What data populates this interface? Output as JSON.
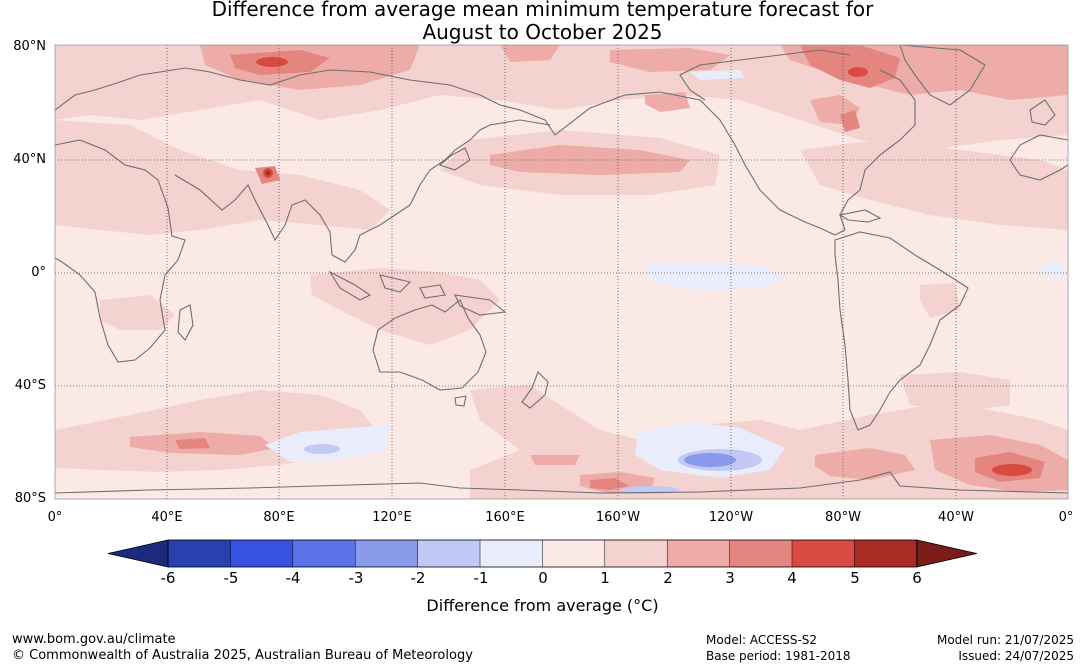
{
  "title_line1": "Difference from average mean minimum temperature forecast for",
  "title_line2": "August to October 2025",
  "lat_labels": [
    "80°N",
    "40°N",
    "0°",
    "40°S",
    "80°S"
  ],
  "lon_labels": [
    "0°",
    "40°E",
    "80°E",
    "120°E",
    "160°E",
    "160°W",
    "120°W",
    "80°W",
    "40°W",
    "0°"
  ],
  "colorbar": {
    "title": "Difference from average (°C)",
    "tick_labels": [
      "-6",
      "-5",
      "-4",
      "-3",
      "-2",
      "-1",
      "0",
      "1",
      "2",
      "3",
      "4",
      "5",
      "6"
    ],
    "colors": [
      "#1b2a7c",
      "#2840b0",
      "#3552e0",
      "#5a73e6",
      "#8a9aeb",
      "#c2c9f4",
      "#e9ecfb",
      "#fbe9e6",
      "#f4d2cf",
      "#edaca7",
      "#e58580",
      "#d94a42",
      "#ab2b25",
      "#7a1c18"
    ]
  },
  "footer": {
    "url": "www.bom.gov.au/climate",
    "copyright": "© Commonwealth of Australia 2025, Australian Bureau of Meteorology",
    "model": "Model: ACCESS-S2",
    "base_period": "Base period: 1981-2018",
    "model_run": "Model run: 21/07/2025",
    "issued": "Issued: 24/07/2025"
  }
}
